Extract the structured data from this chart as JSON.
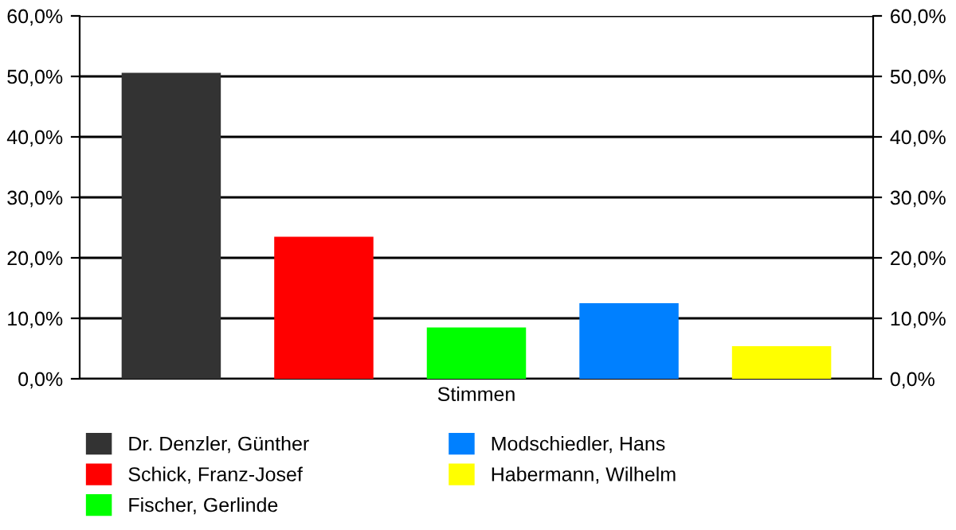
{
  "chart_data": {
    "type": "bar",
    "categories": [
      "Stimmen"
    ],
    "series": [
      {
        "name": "Dr. Denzler, Günther",
        "color": "#333333",
        "values": [
          50.6
        ]
      },
      {
        "name": "Schick, Franz-Josef",
        "color": "#ff0000",
        "values": [
          23.5
        ]
      },
      {
        "name": "Fischer, Gerlinde",
        "color": "#00ff00",
        "values": [
          8.5
        ]
      },
      {
        "name": "Modschiedler, Hans",
        "color": "#0080ff",
        "values": [
          12.5
        ]
      },
      {
        "name": "Habermann, Wilhelm",
        "color": "#ffff00",
        "values": [
          5.4
        ]
      }
    ],
    "ylim": [
      0,
      60
    ],
    "yticks": [
      {
        "value": 0,
        "label": "0,0%"
      },
      {
        "value": 10,
        "label": "10,0%"
      },
      {
        "value": 20,
        "label": "20,0%"
      },
      {
        "value": 30,
        "label": "30,0%"
      },
      {
        "value": 40,
        "label": "40,0%"
      },
      {
        "value": 50,
        "label": "50,0%"
      },
      {
        "value": 60,
        "label": "60,0%"
      }
    ],
    "grid": "y",
    "legend": "bottom"
  }
}
